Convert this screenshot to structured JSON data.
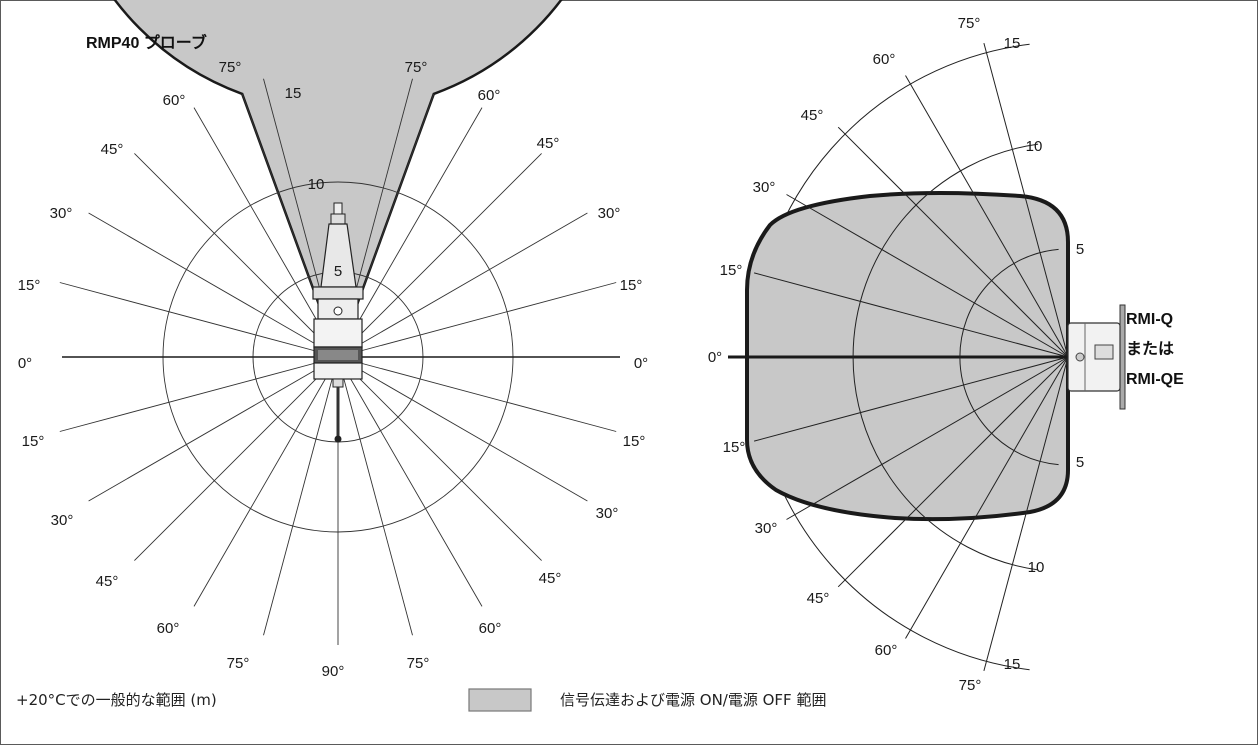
{
  "title": "RMP40 プローブ",
  "receiver_label": [
    "RMI-Q",
    "または",
    "RMI-QE"
  ],
  "footer_note": "+20°Cでの一般的な範囲 (m)",
  "legend_label": "信号伝達および電源 ON/電源 OFF 範囲",
  "left_diagram": {
    "ring_labels": [
      "5",
      "10",
      "15"
    ],
    "angle_labels_left": [
      "75°",
      "60°",
      "45°",
      "30°",
      "15°",
      "0°",
      "15°",
      "30°",
      "45°",
      "60°",
      "75°"
    ],
    "angle_labels_right": [
      "75°",
      "60°",
      "45°",
      "30°",
      "15°",
      "0°",
      "15°",
      "30°",
      "45°",
      "60°",
      "75°"
    ],
    "bottom_label": "90°"
  },
  "right_diagram": {
    "ring_labels_upper": [
      "5",
      "10",
      "15"
    ],
    "ring_labels_lower": [
      "5",
      "10",
      "15"
    ],
    "angle_labels_upper": [
      "75°",
      "60°",
      "45°",
      "30°",
      "15°"
    ],
    "center_label": "0°",
    "angle_labels_lower": [
      "15°",
      "30°",
      "45°",
      "60°",
      "75°"
    ]
  },
  "colors": {
    "fill": "#c8c8c8",
    "line": "#1a1a1a",
    "frame": "#5a5a5a"
  }
}
